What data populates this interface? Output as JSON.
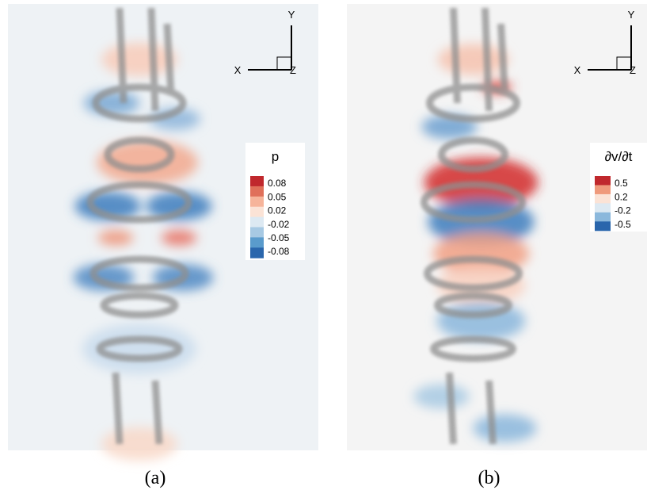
{
  "panels": [
    {
      "label": "(a)",
      "colorbar": {
        "title": "p",
        "ticks": [
          "0.08",
          "0.05",
          "0.02",
          "-0.02",
          "-0.05",
          "-0.08"
        ]
      },
      "axes": {
        "x": "X",
        "y": "Y",
        "z": "Z"
      }
    },
    {
      "label": "(b)",
      "colorbar": {
        "title": "∂v/∂t",
        "ticks": [
          "0.5",
          "0.2",
          "-0.2",
          "-0.5"
        ]
      },
      "axes": {
        "x": "X",
        "y": "Y",
        "z": "Z"
      }
    }
  ]
}
